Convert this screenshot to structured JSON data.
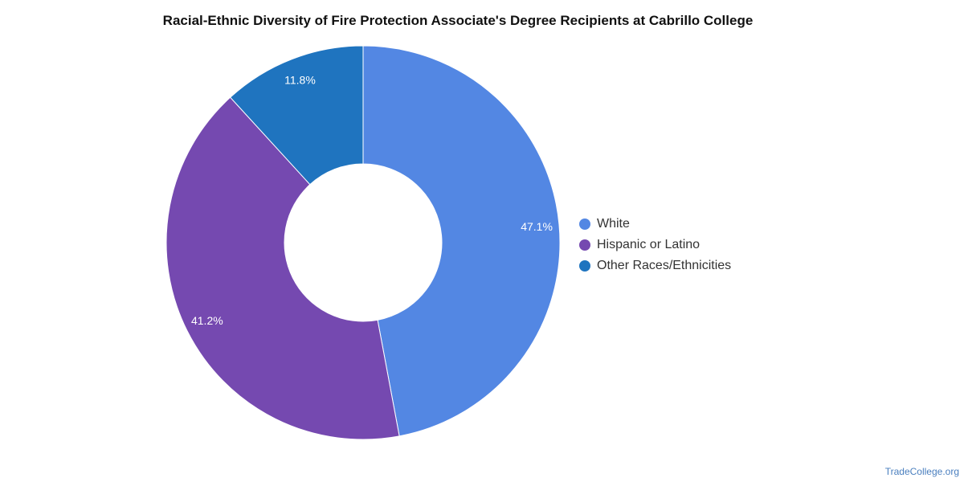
{
  "chart_data": {
    "type": "pie",
    "title": "Racial-Ethnic Diversity of Fire Protection Associate's Degree Recipients at Cabrillo College",
    "donut": true,
    "categories": [
      "White",
      "Hispanic or Latino",
      "Other Races/Ethnicities"
    ],
    "values": [
      47.1,
      41.2,
      11.8
    ],
    "value_labels": [
      "47.1%",
      "41.2%",
      "11.8%"
    ],
    "colors": [
      "#5387e3",
      "#7549b0",
      "#1f74bf"
    ],
    "legend_position": "right"
  },
  "watermark": "TradeCollege.org"
}
